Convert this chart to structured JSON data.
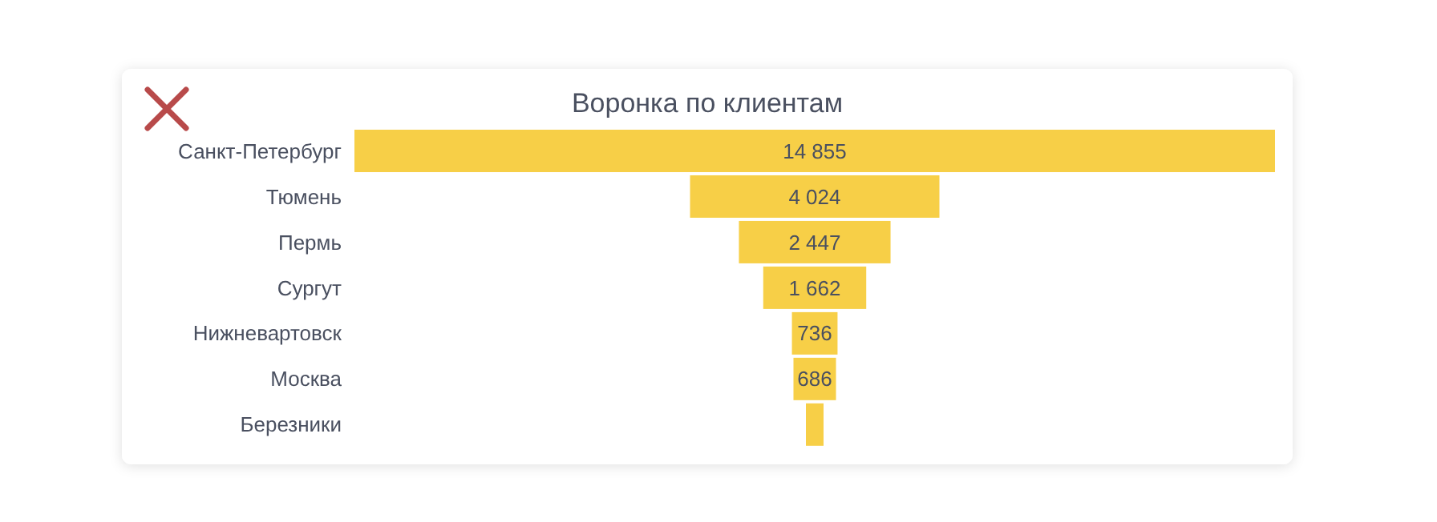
{
  "chart_data": {
    "type": "other",
    "title": "Воронка по клиентам",
    "categories": [
      "Санкт-Петербург",
      "Тюмень",
      "Пермь",
      "Сургут",
      "Нижневартовск",
      "Москва",
      "Березники"
    ],
    "values": [
      14855,
      4024,
      2447,
      1662,
      736,
      686,
      null
    ],
    "value_labels": [
      "14 855",
      "4 024",
      "2 447",
      "1 662",
      "736",
      "686",
      null
    ],
    "color": "#f7cf47"
  }
}
